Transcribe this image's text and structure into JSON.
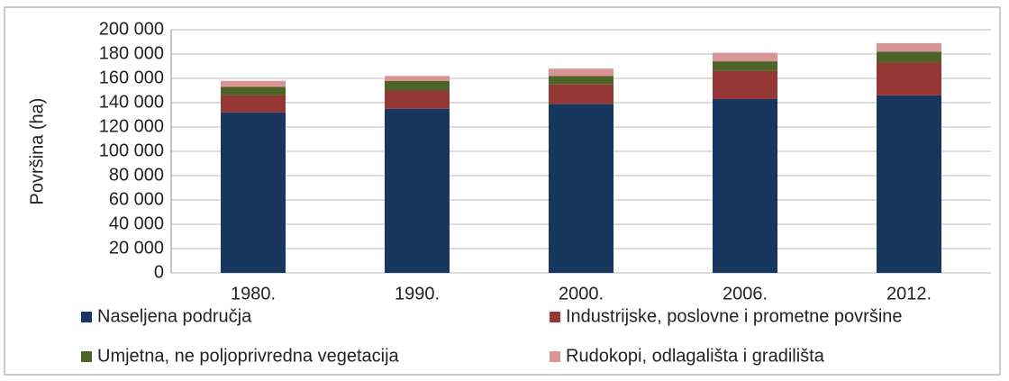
{
  "chart_data": {
    "type": "stacked_bar",
    "y_label": "Površina (ha)",
    "categories": [
      "1980.",
      "1990.",
      "2000.",
      "2006.",
      "2012."
    ],
    "series": [
      {
        "name": "Naseljena područja",
        "color": "#17375e",
        "values": [
          132000,
          135000,
          139000,
          143000,
          146000
        ]
      },
      {
        "name": "Industrijske, poslovne i prometne površine",
        "color": "#953735",
        "values": [
          14000,
          15000,
          16000,
          23000,
          27000
        ]
      },
      {
        "name": "Umjetna, ne poljoprivredna vegetacija",
        "color": "#4f6228",
        "values": [
          7000,
          8000,
          7000,
          8000,
          9000
        ]
      },
      {
        "name": "Rudokopi, odlagališta i gradilišta",
        "color": "#d99594",
        "values": [
          5000,
          4000,
          6000,
          7000,
          7000
        ]
      }
    ],
    "ylim": [
      0,
      200000
    ],
    "yticks": [
      0,
      {
        "value": 20000,
        "label": "20 000"
      },
      {
        "value": 40000,
        "label": "40 000"
      },
      {
        "value": 60000,
        "label": "60 000"
      },
      {
        "value": 80000,
        "label": "80 000"
      },
      {
        "value": 100000,
        "label": "100 000"
      },
      {
        "value": 120000,
        "label": "120 000"
      },
      {
        "value": 140000,
        "label": "140 000"
      },
      {
        "value": 160000,
        "label": "160 000"
      },
      {
        "value": 180000,
        "label": "180 000"
      },
      {
        "value": 200000,
        "label": "200 000"
      }
    ],
    "grid": true
  }
}
